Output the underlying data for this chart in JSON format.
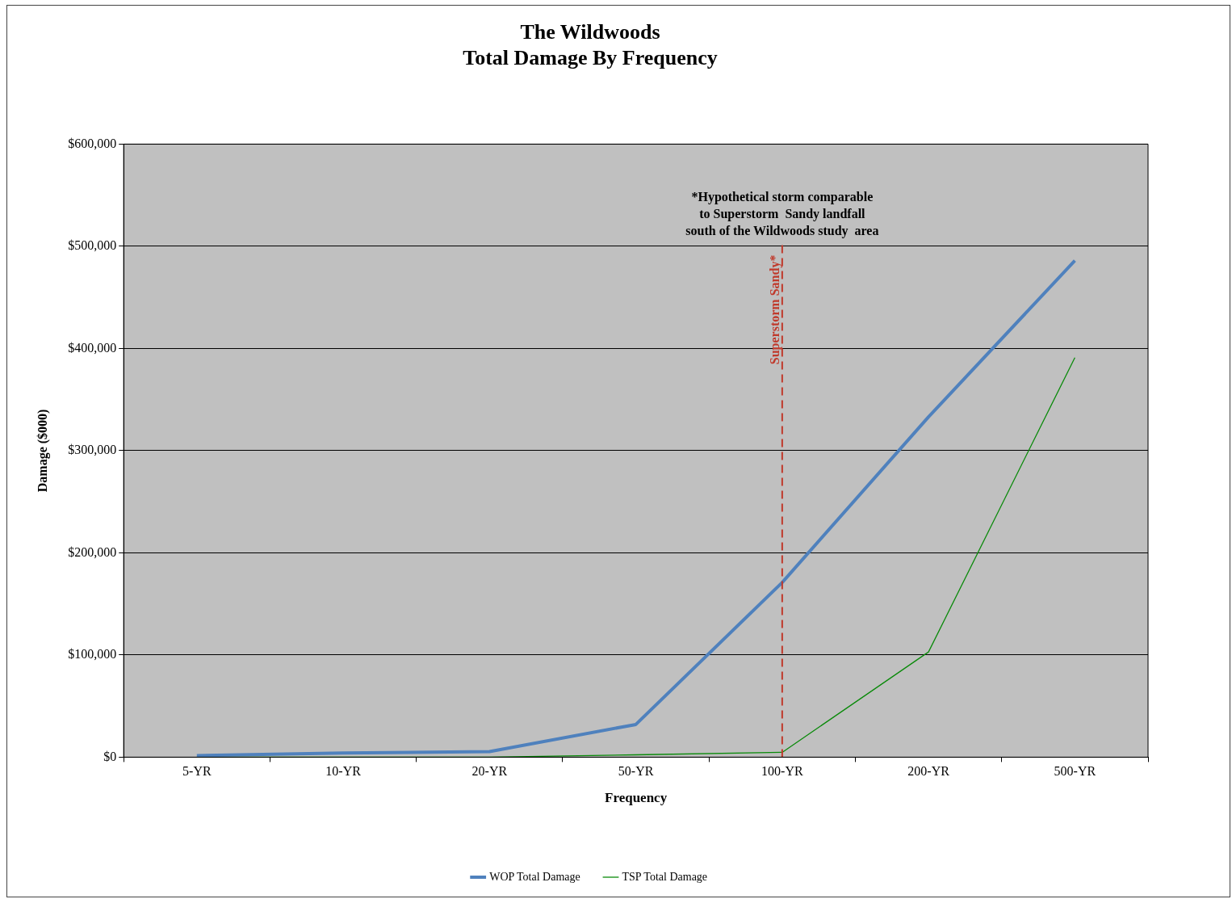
{
  "chart_data": {
    "type": "line",
    "title": [
      "The Wildwoods",
      "Total Damage By Frequency"
    ],
    "xlabel": "Frequency",
    "ylabel": "Damage ($000)",
    "categories": [
      "5-YR",
      "10-YR",
      "20-YR",
      "50-YR",
      "100-YR",
      "200-YR",
      "500-YR"
    ],
    "series": [
      {
        "name": "WOP Total Damage",
        "color": "#4f81bd",
        "values": [
          1500,
          4000,
          5500,
          32000,
          171000,
          333000,
          486000
        ]
      },
      {
        "name": "TSP Total Damage",
        "color": "#0a8a0a",
        "values": [
          0,
          0,
          0,
          2300,
          4700,
          103000,
          391000
        ]
      }
    ],
    "ylim": [
      0,
      600000
    ],
    "yticks": [
      {
        "value": 0,
        "label": "$0"
      },
      {
        "value": 100000,
        "label": "$100,000"
      },
      {
        "value": 200000,
        "label": "$200,000"
      },
      {
        "value": 300000,
        "label": "$300,000"
      },
      {
        "value": 400000,
        "label": "$400,000"
      },
      {
        "value": 500000,
        "label": "$500,000"
      },
      {
        "value": 600000,
        "label": "$600,000"
      }
    ],
    "grid": "y",
    "legend": "bottom",
    "marker": "none",
    "line_style": "solid",
    "ref_lines": [
      {
        "axis": "x",
        "value": "100-YR",
        "label": "Superstorm Sandy*",
        "color": "#c0392b",
        "line_style": "dashed"
      }
    ],
    "annotations": [
      "*Hypothetical storm comparable\nto Superstorm  Sandy landfall\nsouth of the Wildwoods study  area"
    ]
  }
}
